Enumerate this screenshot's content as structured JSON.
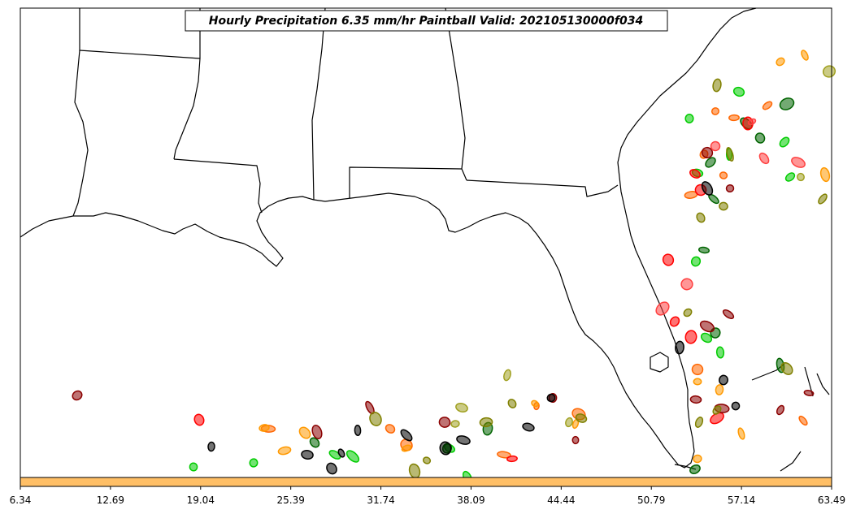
{
  "chart_data": {
    "type": "scatter",
    "title": "Hourly Precipitation 6.35 mm/hr Paintball Valid: 202105130000f034",
    "map_region": "Southeastern United States and Gulf of Mexico",
    "colorbar": {
      "color": "#ffbf66",
      "tick_labels": [
        "6.34",
        "12.69",
        "19.04",
        "25.39",
        "31.74",
        "38.09",
        "44.44",
        "50.79",
        "57.14",
        "63.49"
      ]
    },
    "member_colors": [
      "#00cc00",
      "#006400",
      "#ff6600",
      "#ff9900",
      "#ff0000",
      "#8b0000",
      "#808000",
      "#000000",
      "#a0a020",
      "#ff4040"
    ],
    "series": [
      {
        "color": "#00cc00",
        "points": [
          [
            909,
            113
          ],
          [
            848,
            146
          ],
          [
            858,
            213
          ],
          [
            972,
            218
          ],
          [
            897,
            190
          ],
          [
            856,
            322
          ],
          [
            869,
            416
          ],
          [
            886,
            434
          ],
          [
            238,
            575
          ],
          [
            312,
            570
          ],
          [
            412,
            560
          ],
          [
            434,
            562
          ],
          [
            553,
            552
          ],
          [
            575,
            588
          ],
          [
            965,
            175
          ]
        ]
      },
      {
        "color": "#006400",
        "points": [
          [
            918,
            152
          ],
          [
            874,
            200
          ],
          [
            878,
            245
          ],
          [
            866,
            308
          ],
          [
            880,
            410
          ],
          [
            960,
            450
          ],
          [
            855,
            578
          ],
          [
            387,
            545
          ],
          [
            550,
            552
          ],
          [
            935,
            170
          ],
          [
            968,
            128
          ],
          [
            600,
            528
          ]
        ]
      },
      {
        "color": "#ff6600",
        "points": [
          [
            880,
            137
          ],
          [
            866,
            190
          ],
          [
            850,
            240
          ],
          [
            890,
            216
          ],
          [
            903,
            145
          ],
          [
            858,
            455
          ],
          [
            944,
            130
          ],
          [
            330,
            528
          ],
          [
            480,
            528
          ],
          [
            500,
            548
          ],
          [
            620,
            560
          ],
          [
            660,
            500
          ],
          [
            712,
            510
          ],
          [
            988,
            518
          ]
        ]
      },
      {
        "color": "#ff9900",
        "points": [
          [
            990,
            68
          ],
          [
            960,
            76
          ],
          [
            858,
            470
          ],
          [
            912,
            534
          ],
          [
            858,
            565
          ],
          [
            325,
            527
          ],
          [
            350,
            555
          ],
          [
            375,
            533
          ],
          [
            500,
            552
          ],
          [
            658,
            497
          ],
          [
            708,
            522
          ],
          [
            885,
            480
          ],
          [
            1015,
            215
          ]
        ]
      },
      {
        "color": "#ff0000",
        "points": [
          [
            855,
            214
          ],
          [
            862,
            234
          ],
          [
            822,
            320
          ],
          [
            830,
            396
          ],
          [
            850,
            415
          ],
          [
            882,
            515
          ],
          [
            630,
            565
          ],
          [
            245,
            517
          ],
          [
            920,
            152
          ]
        ]
      },
      {
        "color": "#8b0000",
        "points": [
          [
            870,
            188
          ],
          [
            898,
            232
          ],
          [
            870,
            402
          ],
          [
            896,
            387
          ],
          [
            856,
            492
          ],
          [
            888,
            503
          ],
          [
            960,
            505
          ],
          [
            95,
            487
          ],
          [
            390,
            532
          ],
          [
            455,
            502
          ],
          [
            547,
            520
          ],
          [
            708,
            542
          ],
          [
            680,
            490
          ],
          [
            995,
            484
          ]
        ]
      },
      {
        "color": "#808000",
        "points": [
          [
            882,
            105
          ],
          [
            898,
            190
          ],
          [
            890,
            254
          ],
          [
            862,
            268
          ],
          [
            846,
            385
          ],
          [
            882,
            505
          ],
          [
            860,
            520
          ],
          [
            462,
            516
          ],
          [
            510,
            580
          ],
          [
            525,
            567
          ],
          [
            598,
            520
          ],
          [
            630,
            497
          ],
          [
            715,
            515
          ],
          [
            968,
            454
          ],
          [
            1012,
            245
          ]
        ]
      },
      {
        "color": "#000000",
        "points": [
          [
            870,
            232
          ],
          [
            890,
            468
          ],
          [
            905,
            500
          ],
          [
            836,
            428
          ],
          [
            650,
            526
          ],
          [
            678,
            490
          ],
          [
            548,
            552
          ],
          [
            570,
            542
          ],
          [
            500,
            536
          ],
          [
            420,
            558
          ],
          [
            408,
            577
          ],
          [
            378,
            560
          ],
          [
            440,
            530
          ],
          [
            260,
            550
          ]
        ]
      },
      {
        "color": "#a0a020",
        "points": [
          [
            624,
            462
          ],
          [
            568,
            502
          ],
          [
            560,
            522
          ],
          [
            700,
            520
          ],
          [
            985,
            218
          ],
          [
            1020,
            88
          ]
        ]
      },
      {
        "color": "#ff4040",
        "points": [
          [
            925,
            150
          ],
          [
            815,
            380
          ],
          [
            845,
            350
          ],
          [
            880,
            180
          ],
          [
            940,
            195
          ],
          [
            982,
            200
          ]
        ]
      }
    ]
  }
}
